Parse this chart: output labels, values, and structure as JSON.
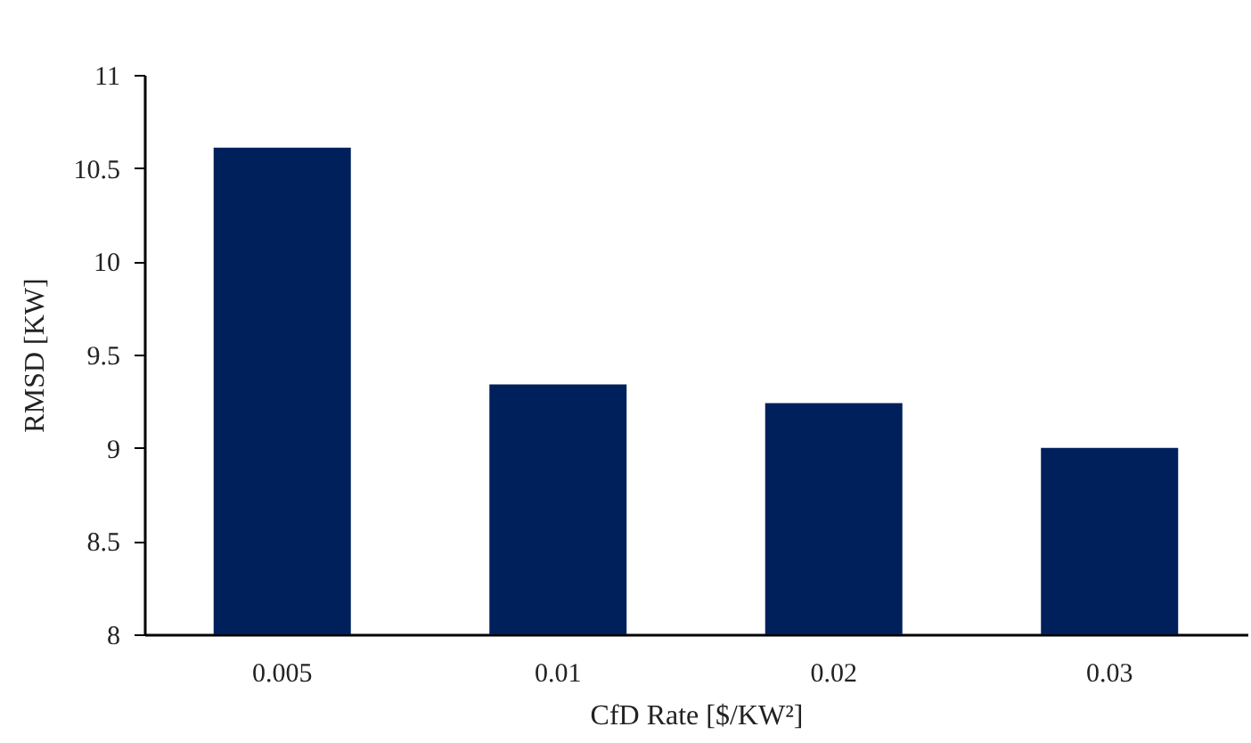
{
  "chart_data": {
    "type": "bar",
    "xlabel": "CfD Rate [$/KW²]",
    "ylabel": "RMSD [KW]",
    "categories": [
      "0.005",
      "0.01",
      "0.02",
      "0.03"
    ],
    "values": [
      10.61,
      9.34,
      9.24,
      9.0
    ],
    "color": "#00205b",
    "ylim": [
      8,
      11
    ],
    "yticks": [
      8,
      8.5,
      9,
      9.5,
      10,
      10.5,
      11
    ],
    "grid": false
  }
}
